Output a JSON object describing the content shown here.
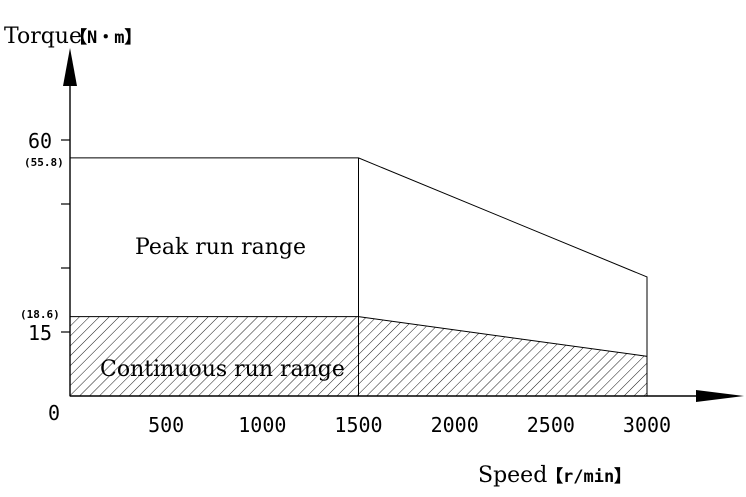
{
  "chart_data": {
    "type": "area",
    "title": "",
    "xlabel": "Speed",
    "xunit": "【r/min】",
    "ylabel": "Torque",
    "yunit": "【N・m】",
    "xlim": [
      0,
      3500
    ],
    "ylim": [
      0,
      75
    ],
    "x_ticks": [
      "0",
      "500",
      "1000",
      "1500",
      "2000",
      "2500",
      "3000"
    ],
    "y_ticks": [
      "15",
      "60"
    ],
    "annotations": {
      "peak_value": "(55.8)",
      "continuous_value": "(18.6)"
    },
    "series": [
      {
        "name": "Peak run range",
        "x": [
          0,
          1500,
          3000
        ],
        "y": [
          55.8,
          55.8,
          27.9
        ]
      },
      {
        "name": "Continuous run range",
        "x": [
          0,
          1500,
          3000
        ],
        "y": [
          18.6,
          18.6,
          9.3
        ]
      }
    ],
    "grid": false
  }
}
